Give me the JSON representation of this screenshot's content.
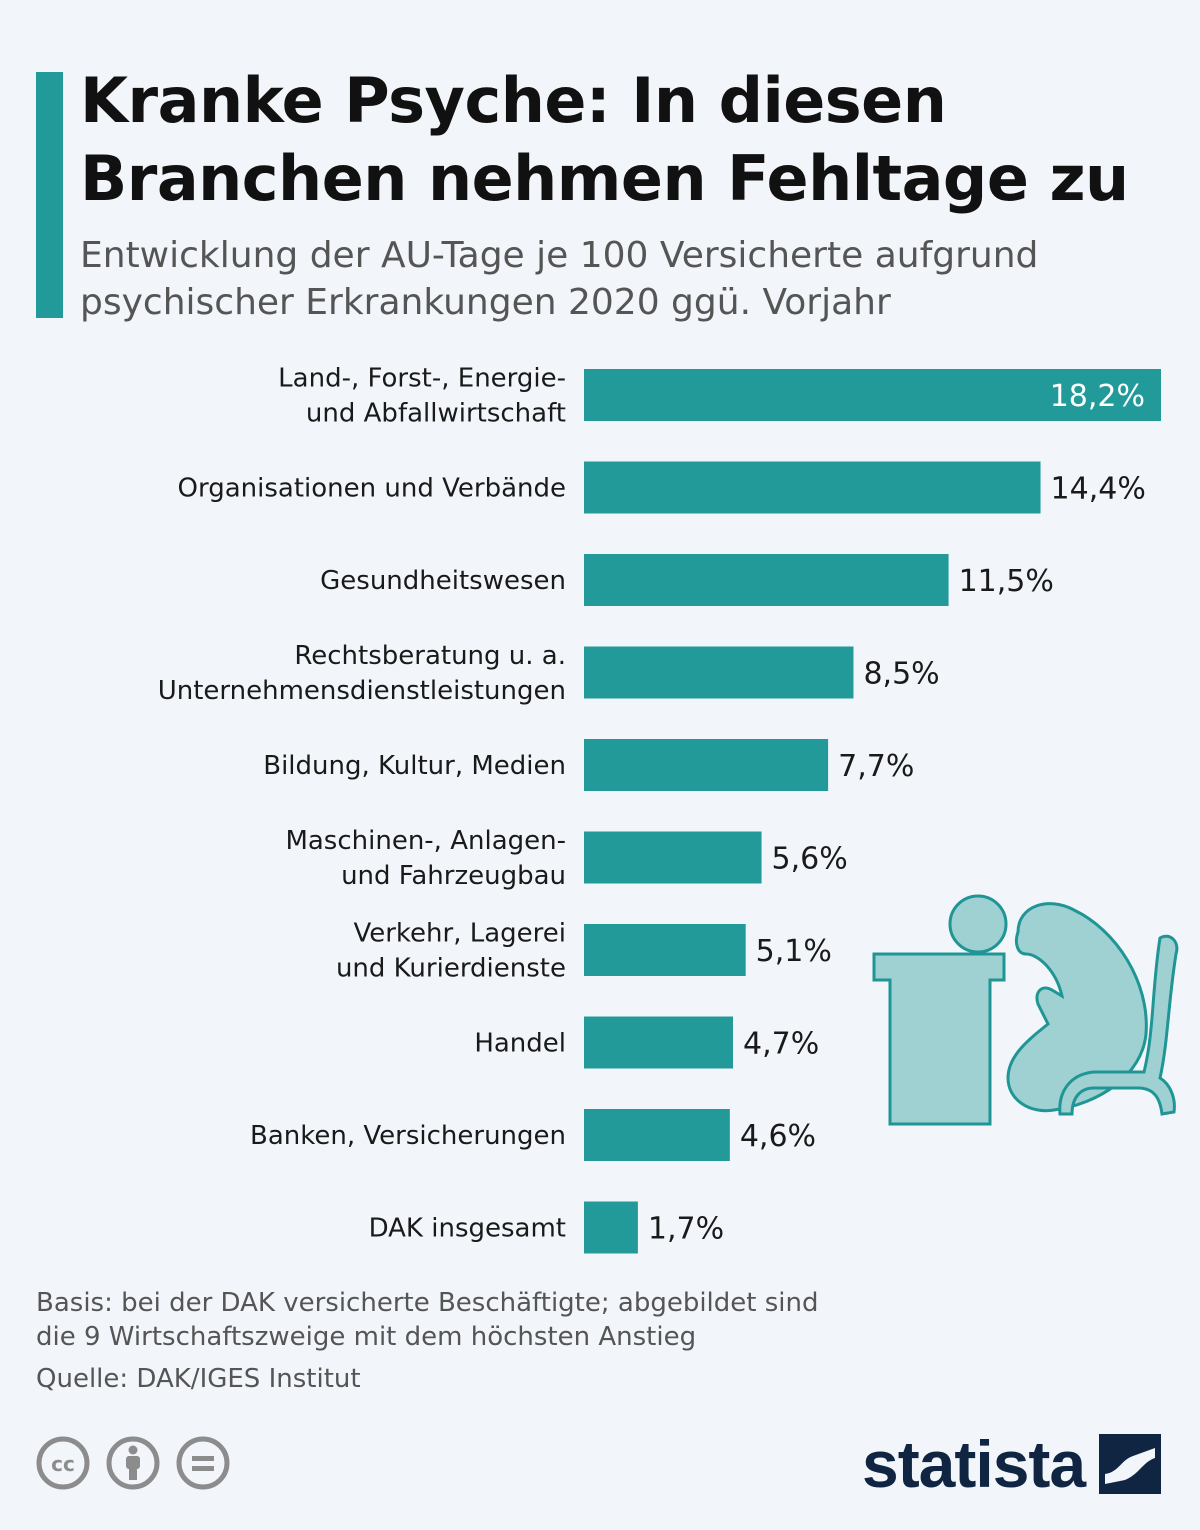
{
  "header": {
    "title_line1": "Kranke Psyche: In diesen",
    "title_line2": "Branchen nehmen Fehltage zu",
    "subtitle_line1": "Entwicklung der AU-Tage je 100 Versicherte aufgrund",
    "subtitle_line2": "psychischer Erkrankungen 2020 ggü. Vorjahr"
  },
  "colors": {
    "accent": "#229a9a",
    "bar": "#229a9a",
    "illustration_fill": "#9fd1d2",
    "illustration_stroke": "#1f9595",
    "brand": "#0f2541",
    "background": "#f2f6fb"
  },
  "chart_data": {
    "type": "bar",
    "orientation": "horizontal",
    "categories": [
      [
        "Land-, Forst-, Energie-",
        "und Abfallwirtschaft"
      ],
      [
        "Organisationen und Verbände"
      ],
      [
        "Gesundheitswesen"
      ],
      [
        "Rechtsberatung u. a.",
        "Unternehmensdienstleistungen"
      ],
      [
        "Bildung, Kultur, Medien"
      ],
      [
        "Maschinen-, Anlagen-",
        "und Fahrzeugbau"
      ],
      [
        "Verkehr, Lagerei",
        "und Kurierdienste"
      ],
      [
        "Handel"
      ],
      [
        "Banken, Versicherungen"
      ],
      [
        "DAK insgesamt"
      ]
    ],
    "values": [
      18.2,
      14.4,
      11.5,
      8.5,
      7.7,
      5.6,
      5.1,
      4.7,
      4.6,
      1.7
    ],
    "value_labels": [
      "18,2%",
      "14,4%",
      "11,5%",
      "8,5%",
      "7,7%",
      "5,6%",
      "5,1%",
      "4,7%",
      "4,6%",
      "1,7%"
    ],
    "unit": "%",
    "xlim": [
      0,
      18.2
    ],
    "grid": false,
    "legend": false
  },
  "footer": {
    "note_line1": "Basis: bei der DAK versicherte Beschäftigte; abgebildet sind",
    "note_line2": "die 9 Wirtschaftszweige mit dem höchsten Anstieg",
    "source": "Quelle: DAK/IGES Institut",
    "license_icons": [
      "cc-icon",
      "attribution-icon",
      "no-derivatives-icon"
    ],
    "brand": "statista",
    "brand_icon": "statista-logo-icon",
    "illustration_icon": "person-at-desk-icon"
  }
}
